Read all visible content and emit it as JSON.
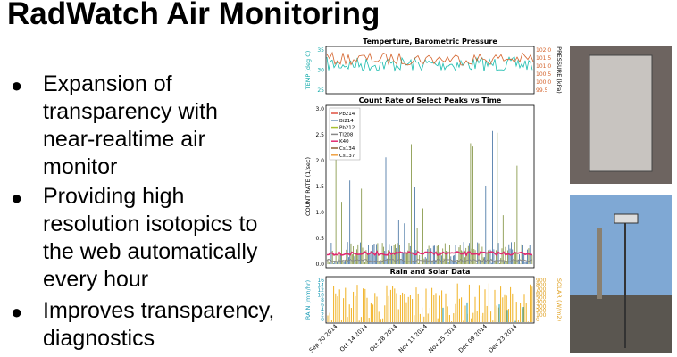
{
  "slide": {
    "title": "RadWatch Air Monitoring",
    "bullets": [
      [
        "Expansion of",
        "transparency with",
        "near-realtime air",
        "monitor"
      ],
      [
        "Providing high",
        "resolution isotopics to",
        "the web automatically",
        "every hour"
      ],
      [
        "Improves transparency,",
        "diagnostics"
      ]
    ],
    "figure": {
      "panels": [
        {
          "title": "Temperture, Barometric Pressure",
          "left_label": "TEMP (deg C)",
          "right_label": "PRESSURE (kPa)",
          "left_ticks": [
            "35",
            "30",
            "25"
          ],
          "right_ticks": [
            "102.0",
            "101.5",
            "101.0",
            "100.5",
            "100.0",
            "99.5"
          ]
        },
        {
          "title": "Count Rate of Select Peaks vs Time",
          "left_label": "COUNT RATE (1/sec)",
          "left_ticks": [
            "3.0",
            "2.5",
            "2.0",
            "1.5",
            "1.0",
            "0.5",
            "0.0"
          ],
          "legend": [
            "Pb214",
            "Bi214",
            "Pb212",
            "Tl208",
            "K40",
            "Cs134",
            "Cs137"
          ]
        },
        {
          "title": "Rain and Solar Data",
          "left_label": "RAIN (mm/hr)",
          "right_label": "SOLAR (W/m2)",
          "left_ticks": [
            "16",
            "14",
            "12",
            "10",
            "8",
            "6",
            "4",
            "2",
            "0"
          ],
          "right_ticks": [
            "900",
            "800",
            "700",
            "600",
            "500",
            "400",
            "300",
            "200",
            "100",
            "0"
          ]
        }
      ],
      "dates": [
        "Sep 30 2014",
        "Oct 14 2014",
        "Oct 28 2014",
        "Nov 11 2014",
        "Nov 25 2014",
        "Dec 09 2014",
        "Dec 23 2014"
      ]
    }
  }
}
